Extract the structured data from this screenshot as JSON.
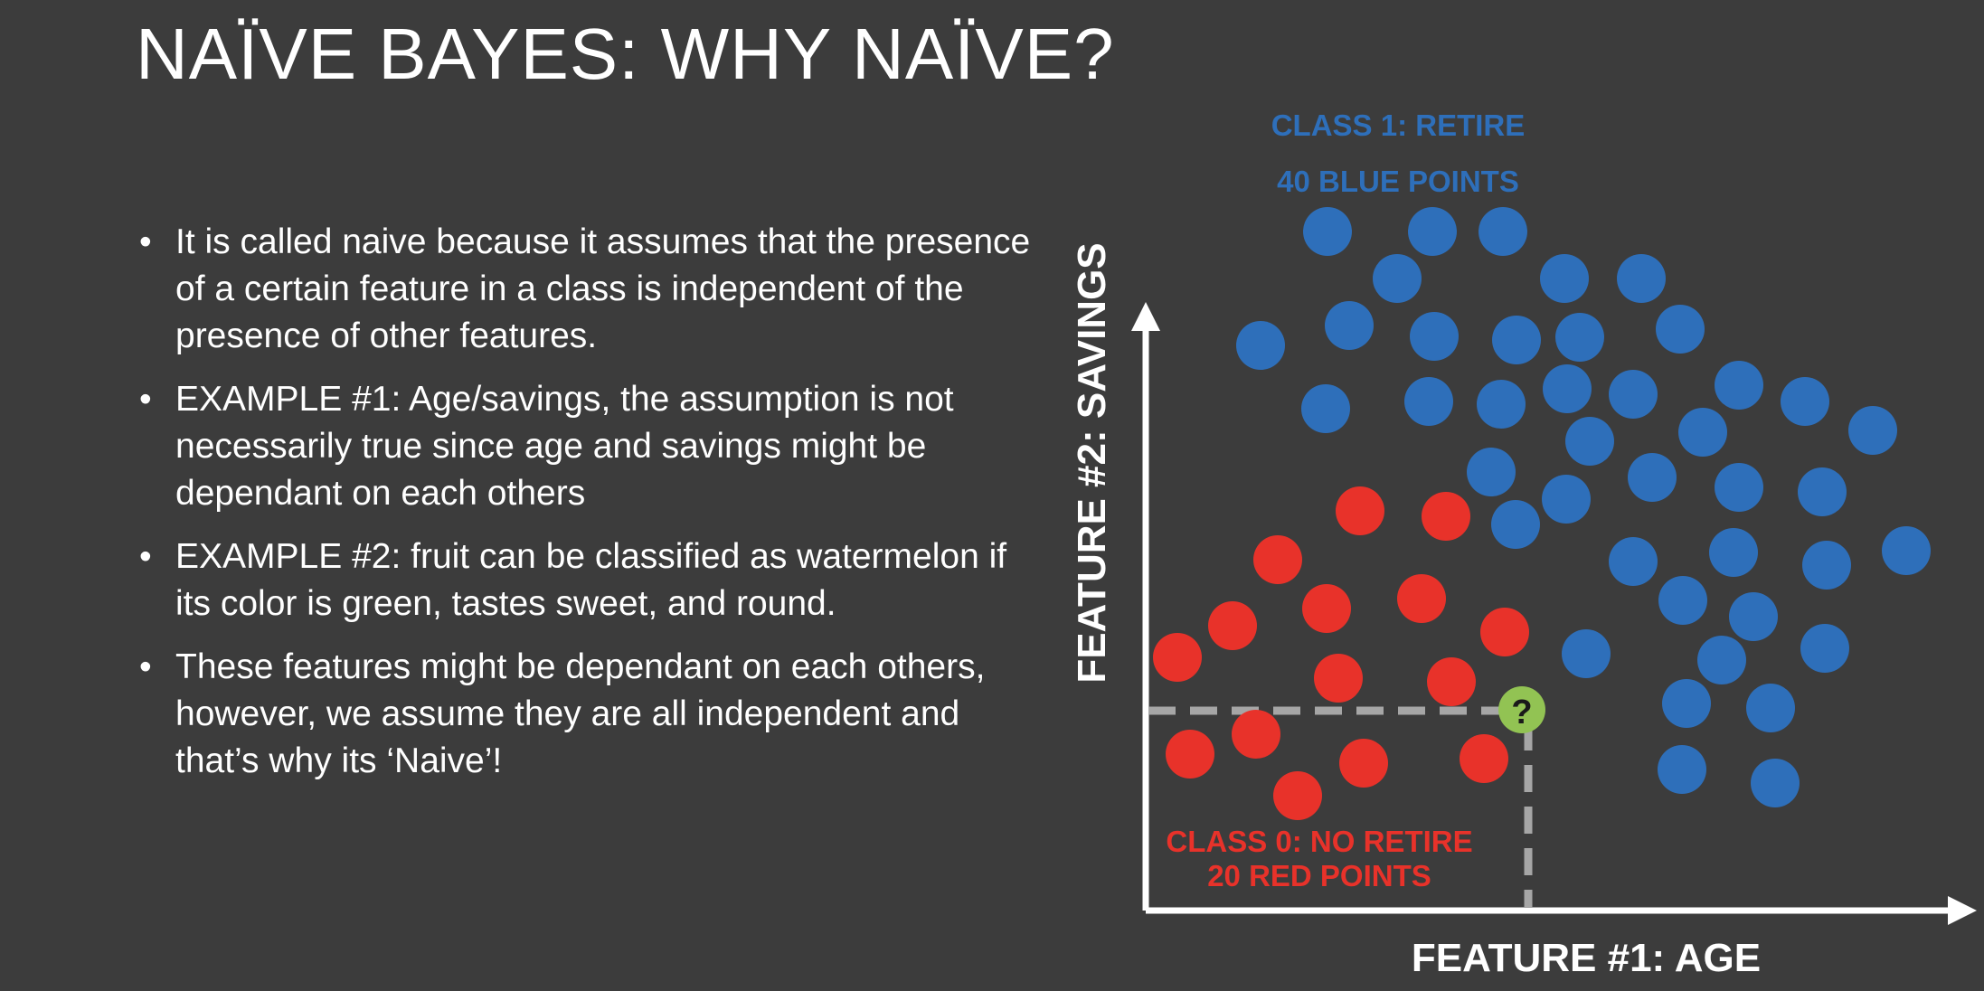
{
  "title": "NAÏVE BAYES: WHY NAÏVE?",
  "bullets": [
    "It is called naive because it assumes that the presence of a certain feature in a class is independent of the presence of other features.",
    "EXAMPLE #1: Age/savings, the assumption is not necessarily true since age and savings might be dependant on each others",
    "EXAMPLE #2: fruit can be classified as watermelon if its color is green, tastes sweet, and round.",
    "These features might be dependant on each others, however, we assume they are all independent and that’s why its ‘Naive’!"
  ],
  "bullet_glyph": "•",
  "diagram": {
    "class1_line1": "CLASS 1: RETIRE",
    "class1_line2": "40 BLUE POINTS",
    "class0_line1": "CLASS 0: NO RETIRE",
    "class0_line2": "20 RED POINTS",
    "y_axis_label": "FEATURE #2: SAVINGS",
    "x_axis_label": "FEATURE #1: AGE",
    "query_symbol": "?",
    "colors": {
      "background": "#3c3c3c",
      "class1": "#2e6fba",
      "class0": "#e8322a",
      "query": "#92c353",
      "guide": "#a6a6a6",
      "axis": "#ffffff"
    }
  }
}
